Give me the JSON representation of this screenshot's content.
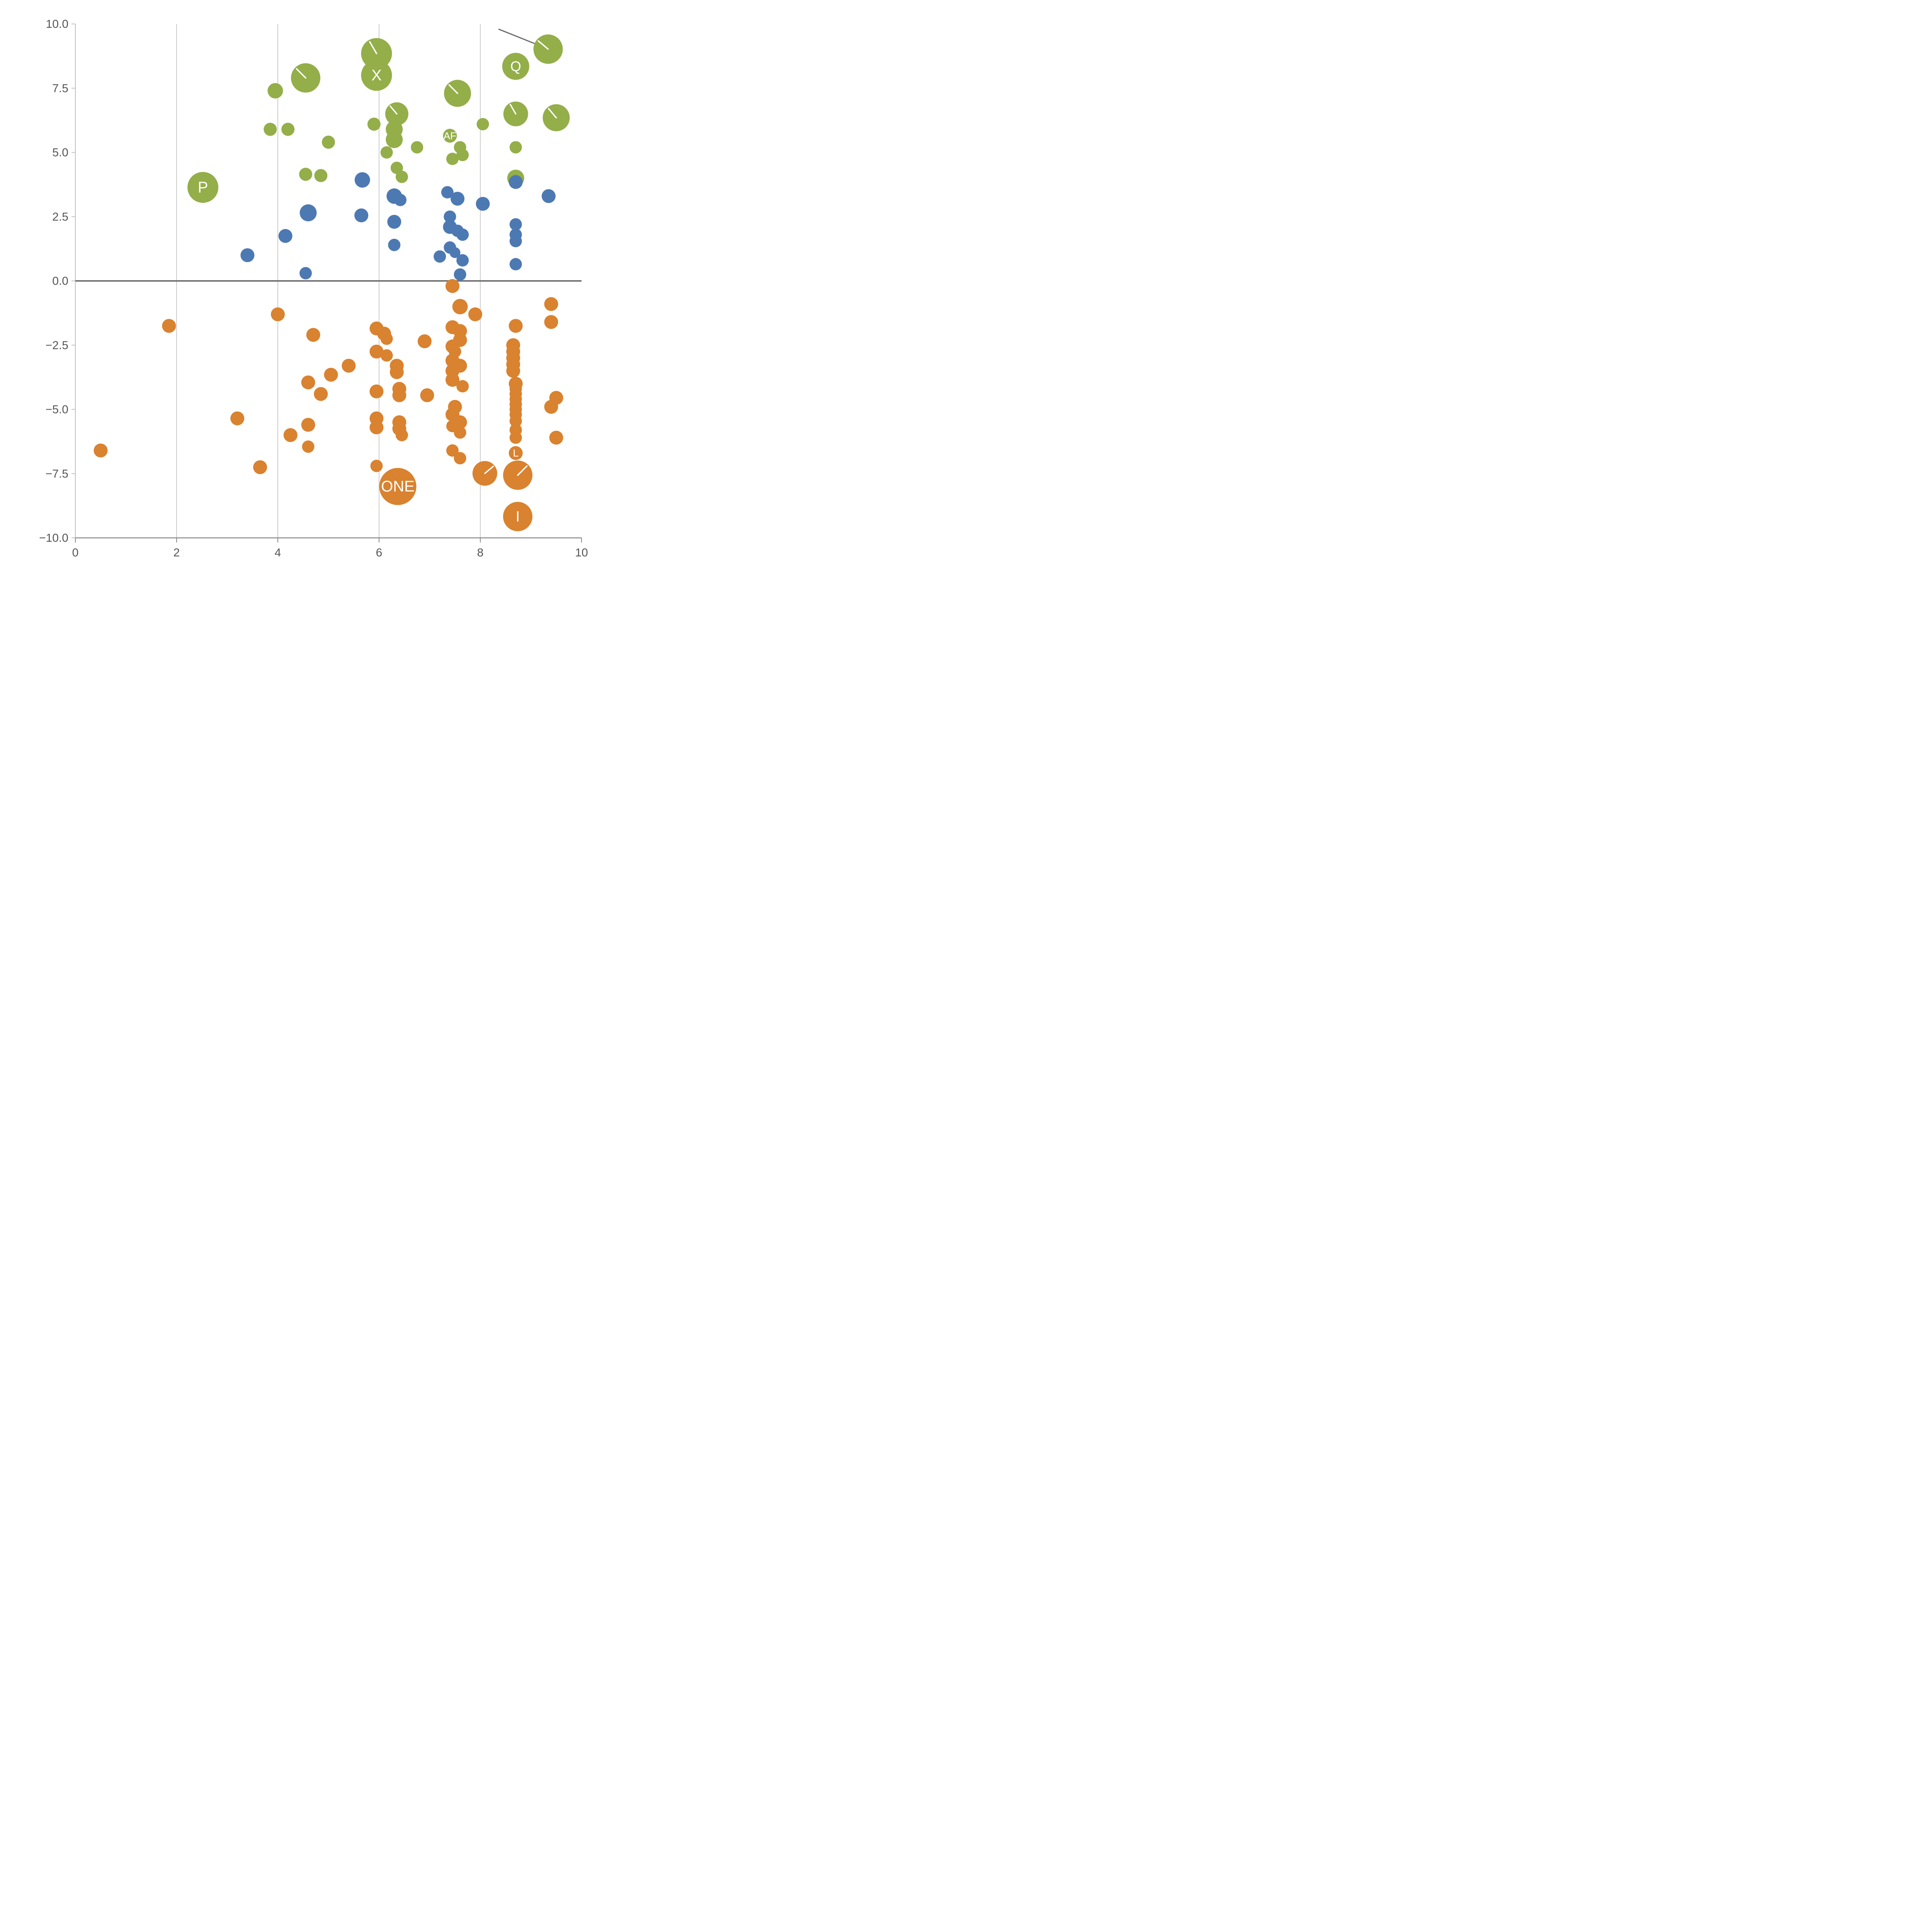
{
  "page": {
    "background": "#ffffff"
  },
  "chart_data": {
    "type": "scatter",
    "title": "",
    "xlabel": "",
    "ylabel": "",
    "xlim": [
      0,
      10
    ],
    "ylim": [
      -10,
      10
    ],
    "x_ticks": [
      0,
      2,
      4,
      6,
      8,
      10
    ],
    "x_tick_labels": [
      "0",
      "2",
      "4",
      "6",
      "8",
      "10"
    ],
    "y_ticks": [
      -10,
      -7.5,
      -5,
      -2.5,
      0,
      2.5,
      5,
      7.5,
      10
    ],
    "y_tick_labels": [
      "−10.0",
      "−7.5",
      "−5.0",
      "−2.5",
      "0.0",
      "2.5",
      "5.0",
      "7.5",
      "10.0"
    ],
    "grid": {
      "vertical_lines": [
        2,
        4,
        6,
        8
      ],
      "color": "#cccccc",
      "on": true
    },
    "zero_line": {
      "y": 0,
      "color": "#737373",
      "width": 4
    },
    "annotation_line": {
      "x1": 8.36,
      "y1": 9.8,
      "x2": 9.31,
      "y2": 9.05,
      "color": "#6b6b6b",
      "width": 3
    },
    "legend": "none",
    "colors": {
      "green": "#94ae49",
      "blue": "#4d79b3",
      "orange": "#d9822f",
      "axis": "#888888",
      "left_spine": "#c0c0c0",
      "tick_label": "#555555",
      "bubble_label": "#ffffff"
    },
    "point_format": [
      "x",
      "y",
      "radius_px",
      "label",
      "mark_angle_deg"
    ],
    "series": [
      {
        "name": "green",
        "color_key": "green",
        "points": [
          [
            2.52,
            3.64,
            40,
            "P"
          ],
          [
            3.95,
            7.4,
            20
          ],
          [
            4.55,
            7.9,
            38,
            null,
            135
          ],
          [
            3.85,
            5.9,
            17
          ],
          [
            4.2,
            5.9,
            17
          ],
          [
            4.55,
            4.15,
            17
          ],
          [
            4.85,
            4.1,
            17
          ],
          [
            5.0,
            5.4,
            17
          ],
          [
            5.95,
            8.85,
            40,
            null,
            120
          ],
          [
            5.95,
            8.0,
            40,
            "X"
          ],
          [
            5.9,
            6.1,
            17
          ],
          [
            6.35,
            6.5,
            30,
            null,
            130
          ],
          [
            6.3,
            5.9,
            22
          ],
          [
            6.3,
            5.5,
            22
          ],
          [
            6.15,
            5.0,
            16
          ],
          [
            6.35,
            4.4,
            16
          ],
          [
            6.45,
            4.05,
            16
          ],
          [
            6.75,
            5.2,
            16
          ],
          [
            7.4,
            5.65,
            18,
            "AF"
          ],
          [
            7.55,
            7.3,
            35,
            null,
            135
          ],
          [
            7.45,
            4.75,
            16
          ],
          [
            7.6,
            5.2,
            16
          ],
          [
            7.65,
            4.9,
            16
          ],
          [
            8.05,
            6.1,
            16
          ],
          [
            8.7,
            8.35,
            35,
            "Q"
          ],
          [
            8.7,
            6.5,
            32,
            null,
            120
          ],
          [
            8.7,
            5.2,
            16
          ],
          [
            8.7,
            4.0,
            22
          ],
          [
            9.34,
            9.02,
            38,
            null,
            140
          ],
          [
            9.5,
            6.35,
            35,
            null,
            130
          ]
        ]
      },
      {
        "name": "blue",
        "color_key": "blue",
        "points": [
          [
            3.4,
            1.0,
            18
          ],
          [
            4.15,
            1.75,
            18
          ],
          [
            4.6,
            2.65,
            22
          ],
          [
            4.55,
            0.3,
            16
          ],
          [
            5.67,
            3.93,
            20
          ],
          [
            5.65,
            2.55,
            18
          ],
          [
            6.3,
            3.3,
            20
          ],
          [
            6.42,
            3.15,
            16
          ],
          [
            6.3,
            2.3,
            18
          ],
          [
            6.3,
            1.4,
            16
          ],
          [
            7.35,
            3.45,
            16
          ],
          [
            7.55,
            3.2,
            18
          ],
          [
            7.4,
            2.5,
            16
          ],
          [
            7.4,
            2.1,
            18
          ],
          [
            7.55,
            1.95,
            16
          ],
          [
            7.65,
            1.8,
            16
          ],
          [
            7.4,
            1.3,
            16
          ],
          [
            7.2,
            0.95,
            16
          ],
          [
            7.5,
            1.1,
            14
          ],
          [
            7.65,
            0.8,
            16
          ],
          [
            7.6,
            0.25,
            16
          ],
          [
            8.05,
            3.0,
            18
          ],
          [
            8.7,
            3.85,
            18
          ],
          [
            8.7,
            2.2,
            16
          ],
          [
            8.7,
            1.8,
            16
          ],
          [
            8.7,
            1.55,
            16
          ],
          [
            8.7,
            0.65,
            16
          ],
          [
            9.35,
            3.3,
            18
          ]
        ]
      },
      {
        "name": "orange",
        "color_key": "orange",
        "points": [
          [
            0.5,
            -6.6,
            18
          ],
          [
            1.85,
            -1.75,
            18
          ],
          [
            3.2,
            -5.35,
            18
          ],
          [
            3.65,
            -7.25,
            18
          ],
          [
            4.0,
            -1.3,
            18
          ],
          [
            4.25,
            -6.0,
            18
          ],
          [
            4.6,
            -3.95,
            18
          ],
          [
            4.6,
            -5.6,
            18
          ],
          [
            4.6,
            -6.45,
            16
          ],
          [
            4.7,
            -2.1,
            18
          ],
          [
            4.85,
            -4.4,
            18
          ],
          [
            5.05,
            -3.65,
            18
          ],
          [
            5.4,
            -3.3,
            18
          ],
          [
            5.95,
            -1.85,
            18
          ],
          [
            6.1,
            -2.05,
            18
          ],
          [
            6.15,
            -2.25,
            16
          ],
          [
            5.95,
            -2.75,
            18
          ],
          [
            6.15,
            -2.9,
            16
          ],
          [
            5.95,
            -4.3,
            18
          ],
          [
            5.95,
            -5.35,
            18
          ],
          [
            5.95,
            -5.7,
            18
          ],
          [
            5.95,
            -7.2,
            16
          ],
          [
            6.35,
            -3.3,
            18
          ],
          [
            6.35,
            -3.55,
            18
          ],
          [
            6.4,
            -4.2,
            18
          ],
          [
            6.4,
            -4.45,
            18
          ],
          [
            6.4,
            -5.5,
            18
          ],
          [
            6.4,
            -5.75,
            18
          ],
          [
            6.45,
            -6.0,
            16
          ],
          [
            6.37,
            -8.0,
            48,
            "ONE"
          ],
          [
            6.9,
            -2.35,
            18
          ],
          [
            6.95,
            -4.45,
            18
          ],
          [
            7.45,
            -0.2,
            18
          ],
          [
            7.6,
            -1.0,
            20
          ],
          [
            7.45,
            -1.8,
            18
          ],
          [
            7.6,
            -1.95,
            18
          ],
          [
            7.6,
            -2.3,
            18
          ],
          [
            7.45,
            -2.55,
            18
          ],
          [
            7.5,
            -2.75,
            16
          ],
          [
            7.45,
            -3.1,
            18
          ],
          [
            7.6,
            -3.3,
            18
          ],
          [
            7.45,
            -3.5,
            18
          ],
          [
            7.45,
            -3.85,
            18
          ],
          [
            7.65,
            -4.1,
            16
          ],
          [
            7.5,
            -4.9,
            18
          ],
          [
            7.45,
            -5.2,
            18
          ],
          [
            7.6,
            -5.5,
            18
          ],
          [
            7.45,
            -5.65,
            16
          ],
          [
            7.6,
            -5.9,
            16
          ],
          [
            7.45,
            -6.6,
            16
          ],
          [
            7.6,
            -6.9,
            16
          ],
          [
            7.9,
            -1.3,
            18
          ],
          [
            8.09,
            -7.49,
            32,
            null,
            40
          ],
          [
            8.7,
            -1.75,
            18
          ],
          [
            8.65,
            -2.5,
            18
          ],
          [
            8.65,
            -2.75,
            18
          ],
          [
            8.65,
            -3.0,
            18
          ],
          [
            8.65,
            -3.25,
            18
          ],
          [
            8.65,
            -3.5,
            18
          ],
          [
            8.7,
            -4.0,
            18
          ],
          [
            8.7,
            -4.2,
            16
          ],
          [
            8.7,
            -4.4,
            16
          ],
          [
            8.7,
            -4.6,
            16
          ],
          [
            8.7,
            -4.8,
            16
          ],
          [
            8.7,
            -5.0,
            16
          ],
          [
            8.7,
            -5.2,
            16
          ],
          [
            8.7,
            -5.45,
            16
          ],
          [
            8.7,
            -5.8,
            16
          ],
          [
            8.7,
            -6.1,
            16
          ],
          [
            8.7,
            -6.7,
            18,
            "L"
          ],
          [
            8.74,
            -7.56,
            38,
            null,
            45
          ],
          [
            8.74,
            -9.17,
            38,
            "I"
          ],
          [
            9.4,
            -0.9,
            18
          ],
          [
            9.4,
            -1.6,
            18
          ],
          [
            9.4,
            -4.9,
            18
          ],
          [
            9.5,
            -4.55,
            18
          ],
          [
            9.5,
            -6.1,
            18
          ]
        ]
      }
    ]
  }
}
